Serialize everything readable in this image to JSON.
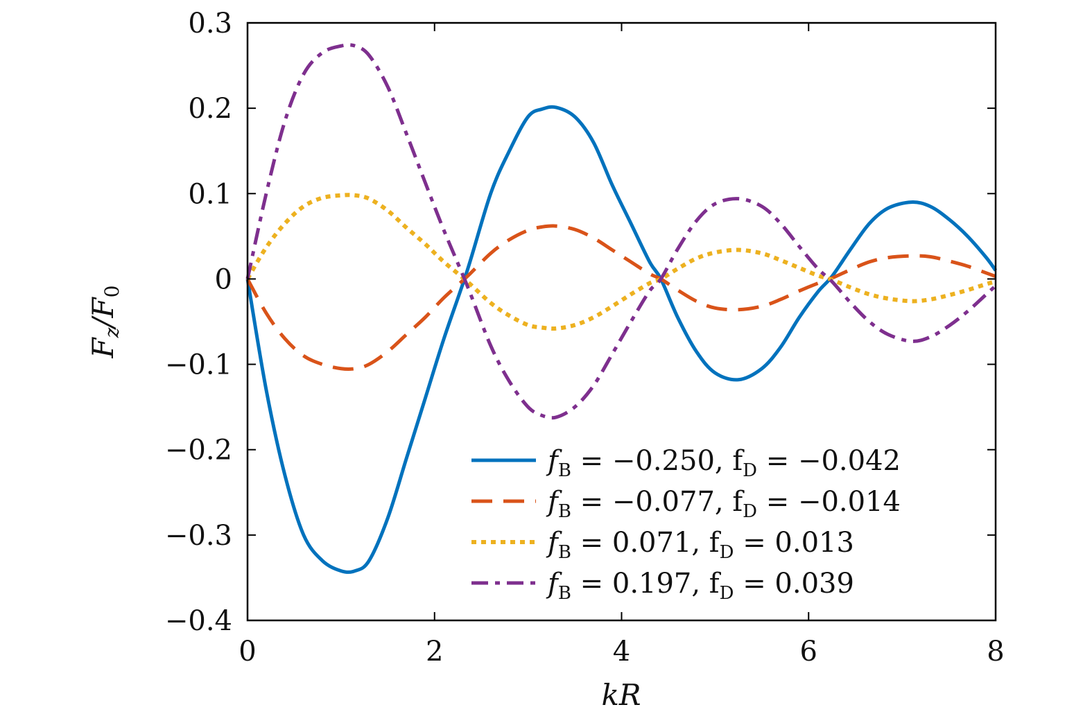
{
  "chart_data": {
    "type": "line",
    "xlabel": "kR",
    "ylabel": "Fz/F0",
    "xlim": [
      0,
      8
    ],
    "ylim": [
      -0.4,
      0.3
    ],
    "xticks": [
      0,
      2,
      4,
      6,
      8
    ],
    "xtick_labels": [
      "0",
      "2",
      "4",
      "6",
      "8"
    ],
    "yticks": [
      -0.4,
      -0.3,
      -0.2,
      -0.1,
      0,
      0.1,
      0.2,
      0.3
    ],
    "ytick_labels": [
      "−0.4",
      "−0.3",
      "−0.2",
      "−0.1",
      "0",
      "0.1",
      "0.2",
      "0.3"
    ],
    "grid": false,
    "legend_position": "lower-right",
    "series": [
      {
        "name": "fB = −0.250, fD = −0.042",
        "color": "#0072bd",
        "style": "solid",
        "x": [
          0,
          0.2,
          0.4,
          0.6,
          0.8,
          1.0,
          1.15,
          1.3,
          1.5,
          1.7,
          1.9,
          2.1,
          2.35,
          2.6,
          2.8,
          3.0,
          3.15,
          3.3,
          3.5,
          3.7,
          3.9,
          4.1,
          4.3,
          4.42,
          4.6,
          4.8,
          5.0,
          5.25,
          5.5,
          5.7,
          5.9,
          6.1,
          6.25,
          6.45,
          6.65,
          6.85,
          7.1,
          7.3,
          7.5,
          7.7,
          7.9,
          8.0
        ],
        "y": [
          0,
          -0.13,
          -0.23,
          -0.3,
          -0.33,
          -0.342,
          -0.342,
          -0.33,
          -0.28,
          -0.21,
          -0.14,
          -0.07,
          0.01,
          0.1,
          0.15,
          0.19,
          0.199,
          0.201,
          0.19,
          0.16,
          0.11,
          0.065,
          0.02,
          0.0,
          -0.045,
          -0.085,
          -0.11,
          -0.118,
          -0.105,
          -0.08,
          -0.045,
          -0.015,
          0.003,
          0.035,
          0.065,
          0.083,
          0.09,
          0.085,
          0.07,
          0.05,
          0.025,
          0.01
        ]
      },
      {
        "name": "fB = −0.077, fD = −0.014",
        "color": "#d95319",
        "style": "dashed",
        "x": [
          0,
          0.2,
          0.4,
          0.6,
          0.8,
          1.0,
          1.15,
          1.3,
          1.5,
          1.7,
          1.9,
          2.1,
          2.35,
          2.6,
          2.8,
          3.0,
          3.15,
          3.3,
          3.5,
          3.7,
          3.9,
          4.1,
          4.3,
          4.42,
          4.6,
          4.8,
          5.0,
          5.25,
          5.5,
          5.7,
          5.9,
          6.1,
          6.25,
          6.45,
          6.65,
          6.85,
          7.1,
          7.3,
          7.5,
          7.7,
          7.9,
          8.0
        ],
        "y": [
          0,
          -0.04,
          -0.07,
          -0.09,
          -0.1,
          -0.105,
          -0.105,
          -0.1,
          -0.085,
          -0.065,
          -0.045,
          -0.022,
          0.003,
          0.03,
          0.046,
          0.057,
          0.061,
          0.062,
          0.058,
          0.048,
          0.034,
          0.02,
          0.006,
          0.0,
          -0.013,
          -0.026,
          -0.034,
          -0.036,
          -0.032,
          -0.024,
          -0.014,
          -0.005,
          0.001,
          0.011,
          0.02,
          0.025,
          0.027,
          0.026,
          0.021,
          0.015,
          0.007,
          0.003
        ]
      },
      {
        "name": "fB = 0.071, fD = 0.013",
        "color": "#edb120",
        "style": "dotted",
        "x": [
          0,
          0.2,
          0.4,
          0.6,
          0.8,
          1.0,
          1.15,
          1.3,
          1.5,
          1.7,
          1.9,
          2.1,
          2.35,
          2.6,
          2.8,
          3.0,
          3.15,
          3.3,
          3.5,
          3.7,
          3.9,
          4.1,
          4.3,
          4.42,
          4.6,
          4.8,
          5.0,
          5.25,
          5.5,
          5.7,
          5.9,
          6.1,
          6.25,
          6.45,
          6.65,
          6.85,
          7.1,
          7.3,
          7.5,
          7.7,
          7.9,
          8.0
        ],
        "y": [
          0,
          0.037,
          0.065,
          0.085,
          0.095,
          0.098,
          0.098,
          0.094,
          0.08,
          0.06,
          0.041,
          0.02,
          -0.003,
          -0.028,
          -0.043,
          -0.054,
          -0.057,
          -0.058,
          -0.054,
          -0.045,
          -0.032,
          -0.018,
          -0.005,
          0.0,
          0.012,
          0.024,
          0.031,
          0.034,
          0.03,
          0.022,
          0.013,
          0.004,
          -0.001,
          -0.01,
          -0.018,
          -0.023,
          -0.026,
          -0.024,
          -0.019,
          -0.013,
          -0.006,
          -0.003
        ]
      },
      {
        "name": "fB = 0.197, fD = 0.039",
        "color": "#7e2f8e",
        "style": "dashdot",
        "x": [
          0,
          0.2,
          0.4,
          0.6,
          0.8,
          1.0,
          1.15,
          1.3,
          1.5,
          1.7,
          1.9,
          2.1,
          2.35,
          2.6,
          2.8,
          3.0,
          3.15,
          3.3,
          3.5,
          3.7,
          3.9,
          4.1,
          4.3,
          4.42,
          4.6,
          4.8,
          5.0,
          5.25,
          5.5,
          5.7,
          5.9,
          6.1,
          6.25,
          6.45,
          6.65,
          6.85,
          7.1,
          7.3,
          7.5,
          7.7,
          7.9,
          8.0
        ],
        "y": [
          0,
          0.1,
          0.185,
          0.24,
          0.265,
          0.273,
          0.273,
          0.262,
          0.225,
          0.17,
          0.113,
          0.057,
          -0.008,
          -0.078,
          -0.12,
          -0.15,
          -0.16,
          -0.162,
          -0.15,
          -0.125,
          -0.088,
          -0.05,
          -0.014,
          0.0,
          0.035,
          0.068,
          0.088,
          0.094,
          0.085,
          0.065,
          0.038,
          0.012,
          -0.003,
          -0.028,
          -0.05,
          -0.065,
          -0.073,
          -0.068,
          -0.055,
          -0.038,
          -0.018,
          -0.008
        ]
      }
    ]
  },
  "legend": {
    "entries": [
      {
        "prefix": "f",
        "sub1": "B",
        "mid": " = −0.250,  f",
        "sub2": "D",
        "suffix": " = −0.042"
      },
      {
        "prefix": "f",
        "sub1": "B",
        "mid": " = −0.077,  f",
        "sub2": "D",
        "suffix": " = −0.014"
      },
      {
        "prefix": "f",
        "sub1": "B",
        "mid": " = 0.071,  f",
        "sub2": "D",
        "suffix": " = 0.013"
      },
      {
        "prefix": "f",
        "sub1": "B",
        "mid": " = 0.197,  f",
        "sub2": "D",
        "suffix": " = 0.039"
      }
    ]
  },
  "axis_text": {
    "ylabel_main": "F",
    "ylabel_sub": "z",
    "ylabel_div": "/F",
    "ylabel_sub2": "0",
    "xlabel": "kR"
  }
}
